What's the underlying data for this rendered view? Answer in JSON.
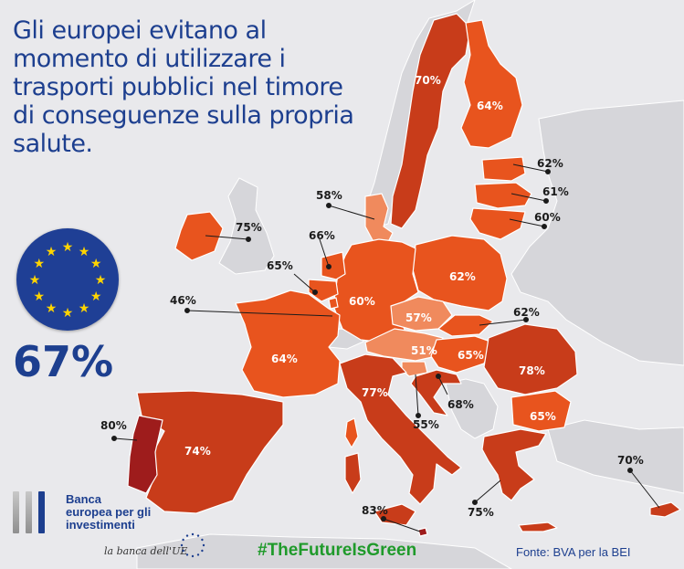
{
  "title": "Gli europei evitano al momento di utilizzare i trasporti pubblici nel timore di conseguenze sulla propria salute.",
  "average": {
    "value": "67%",
    "flag": "eu-flag-icon"
  },
  "colors": {
    "background": "#e9e9ec",
    "non_eu_land": "#d6d6da",
    "scale_55_61": "#f08a5d",
    "scale_62_66": "#e8541e",
    "scale_70_78": "#c83c1a",
    "scale_80_83": "#9e1c1c",
    "brand_blue": "#1d3f8f",
    "hashtag_green": "#1f9a2a",
    "flag_star": "#ffd400"
  },
  "countries": [
    {
      "id": "portugal",
      "label": "80%"
    },
    {
      "id": "malta",
      "label": "83%"
    },
    {
      "id": "romania",
      "label": "78%"
    },
    {
      "id": "italy",
      "label": "77%"
    },
    {
      "id": "ireland",
      "label": "75%"
    },
    {
      "id": "greece",
      "label": "75%"
    },
    {
      "id": "spain",
      "label": "74%"
    },
    {
      "id": "sweden",
      "label": "70%"
    },
    {
      "id": "cyprus",
      "label": "70%"
    },
    {
      "id": "croatia",
      "label": "68%"
    },
    {
      "id": "netherlands",
      "label": "66%"
    },
    {
      "id": "belgium",
      "label": "65%"
    },
    {
      "id": "hungary",
      "label": "65%"
    },
    {
      "id": "bulgaria",
      "label": "65%"
    },
    {
      "id": "finland",
      "label": "64%"
    },
    {
      "id": "france",
      "label": "64%"
    },
    {
      "id": "estonia",
      "label": "62%"
    },
    {
      "id": "poland",
      "label": "62%"
    },
    {
      "id": "slovakia",
      "label": "62%"
    },
    {
      "id": "latvia",
      "label": "61%"
    },
    {
      "id": "lithuania",
      "label": "60%"
    },
    {
      "id": "germany",
      "label": "60%"
    },
    {
      "id": "denmark",
      "label": "58%"
    },
    {
      "id": "czechia",
      "label": "57%"
    },
    {
      "id": "slovenia",
      "label": "55%"
    },
    {
      "id": "austria",
      "label": "51%"
    },
    {
      "id": "luxembourg",
      "label": "46%"
    }
  ],
  "footer": {
    "bank_name_line1": "Banca",
    "bank_name_line2": "europea per gli",
    "bank_name_line3": "investimenti",
    "bank_tagline": "la banca dell'UE",
    "hashtag": "#TheFutureIsGreen",
    "source": "Fonte: BVA per la BEI"
  }
}
